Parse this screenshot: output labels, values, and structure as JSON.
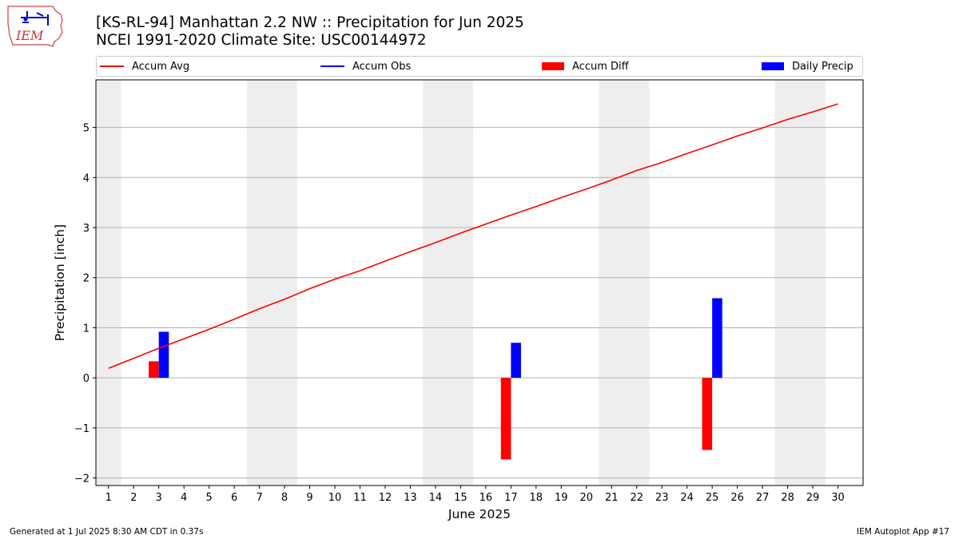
{
  "header": {
    "title_line1": "[KS-RL-94] Manhattan 2.2 NW :: Precipitation for Jun 2025",
    "title_line2": "NCEI 1991-2020 Climate Site: USC00144972"
  },
  "logo": {
    "text": "IEM",
    "icon": "iem-weather-logo-icon"
  },
  "legend": {
    "items": [
      {
        "label": "Accum Avg",
        "color": "#ff0000",
        "kind": "line"
      },
      {
        "label": "Accum Obs",
        "color": "#0000ff",
        "kind": "line"
      },
      {
        "label": "Accum Diff",
        "color": "#ff0000",
        "kind": "patch"
      },
      {
        "label": "Daily Precip",
        "color": "#0000ff",
        "kind": "patch"
      }
    ]
  },
  "footer": {
    "left": "Generated at 1 Jul 2025 8:30 AM CDT in 0.37s",
    "right": "IEM Autoplot App #17"
  },
  "chart_data": {
    "type": "bar",
    "title": "[KS-RL-94] Manhattan 2.2 NW :: Precipitation for Jun 2025",
    "subtitle": "NCEI 1991-2020 Climate Site: USC00144972",
    "xlabel": "June 2025",
    "ylabel": "Precipitation [inch]",
    "xlim": [
      0.5,
      31
    ],
    "ylim": [
      -2.15,
      5.95
    ],
    "x_ticks": [
      1,
      2,
      3,
      4,
      5,
      6,
      7,
      8,
      9,
      10,
      11,
      12,
      13,
      14,
      15,
      16,
      17,
      18,
      19,
      20,
      21,
      22,
      23,
      24,
      25,
      26,
      27,
      28,
      29,
      30
    ],
    "y_ticks": [
      -2,
      -1,
      0,
      1,
      2,
      3,
      4,
      5
    ],
    "y_tick_labels": [
      "−2",
      "−1",
      "0",
      "1",
      "2",
      "3",
      "4",
      "5"
    ],
    "grid": "horizontal",
    "legend_position": "top",
    "weekend_shading": [
      [
        0.5,
        1.5
      ],
      [
        6.5,
        8.5
      ],
      [
        13.5,
        15.5
      ],
      [
        20.5,
        22.5
      ],
      [
        27.5,
        29.5
      ]
    ],
    "series": [
      {
        "name": "Accum Avg",
        "kind": "line",
        "color": "#ff0000",
        "x": [
          1,
          2,
          3,
          4,
          5,
          6,
          7,
          8,
          9,
          10,
          11,
          12,
          13,
          14,
          15,
          16,
          17,
          18,
          19,
          20,
          21,
          22,
          23,
          24,
          25,
          26,
          27,
          28,
          29,
          30
        ],
        "values": [
          0.19,
          0.39,
          0.59,
          0.78,
          0.97,
          1.17,
          1.38,
          1.57,
          1.78,
          1.97,
          2.14,
          2.33,
          2.52,
          2.7,
          2.89,
          3.07,
          3.25,
          3.42,
          3.6,
          3.77,
          3.95,
          4.14,
          4.3,
          4.48,
          4.65,
          4.83,
          4.99,
          5.16,
          5.31,
          5.47
        ]
      },
      {
        "name": "Accum Diff",
        "kind": "bar",
        "color": "#ff0000",
        "x": [
          3,
          17,
          25
        ],
        "values": [
          0.33,
          -1.63,
          -1.44
        ]
      },
      {
        "name": "Daily Precip",
        "kind": "bar",
        "color": "#0000ff",
        "x": [
          3,
          17,
          25
        ],
        "values": [
          0.92,
          0.7,
          1.59
        ]
      }
    ]
  }
}
